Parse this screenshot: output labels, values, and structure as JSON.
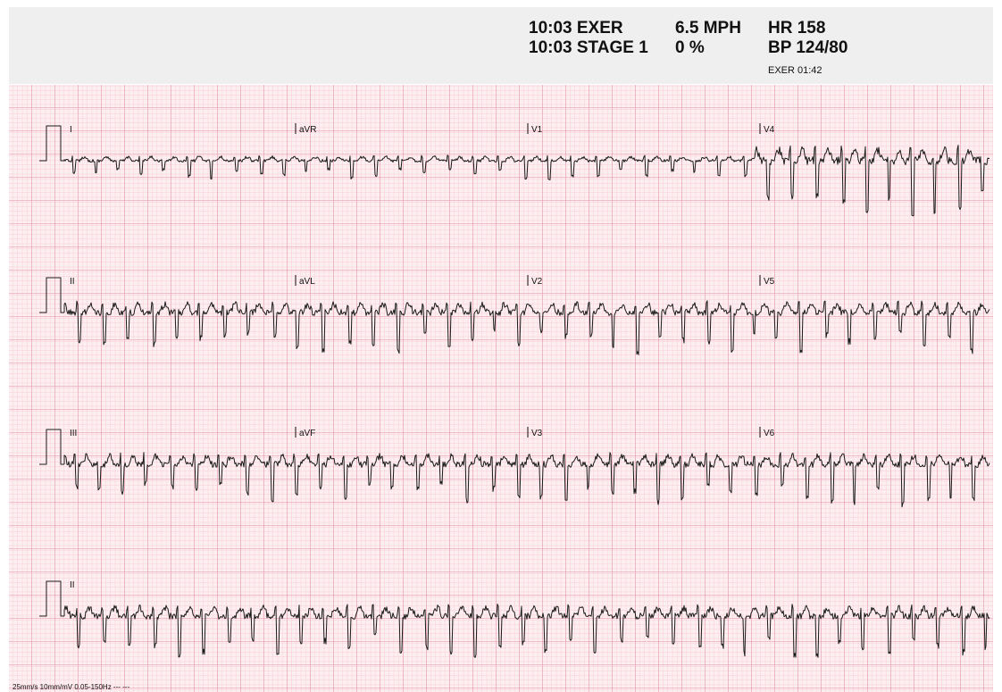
{
  "header": {
    "time_exer": "10:03 EXER",
    "time_stage": "10:03 STAGE 1",
    "speed": "6.5 MPH",
    "grade": "0 %",
    "hr": "HR 158",
    "bp": "BP 124/80",
    "exer_time": "EXER 01:42"
  },
  "leads": [
    [
      "I",
      "aVR",
      "V1",
      "V4"
    ],
    [
      "II",
      "aVL",
      "V2",
      "V5"
    ],
    [
      "III",
      "aVF",
      "V3",
      "V6"
    ],
    [
      "II"
    ]
  ],
  "footer": "25mm/s 10mm/mV 0.05-150Hz --- ---"
}
